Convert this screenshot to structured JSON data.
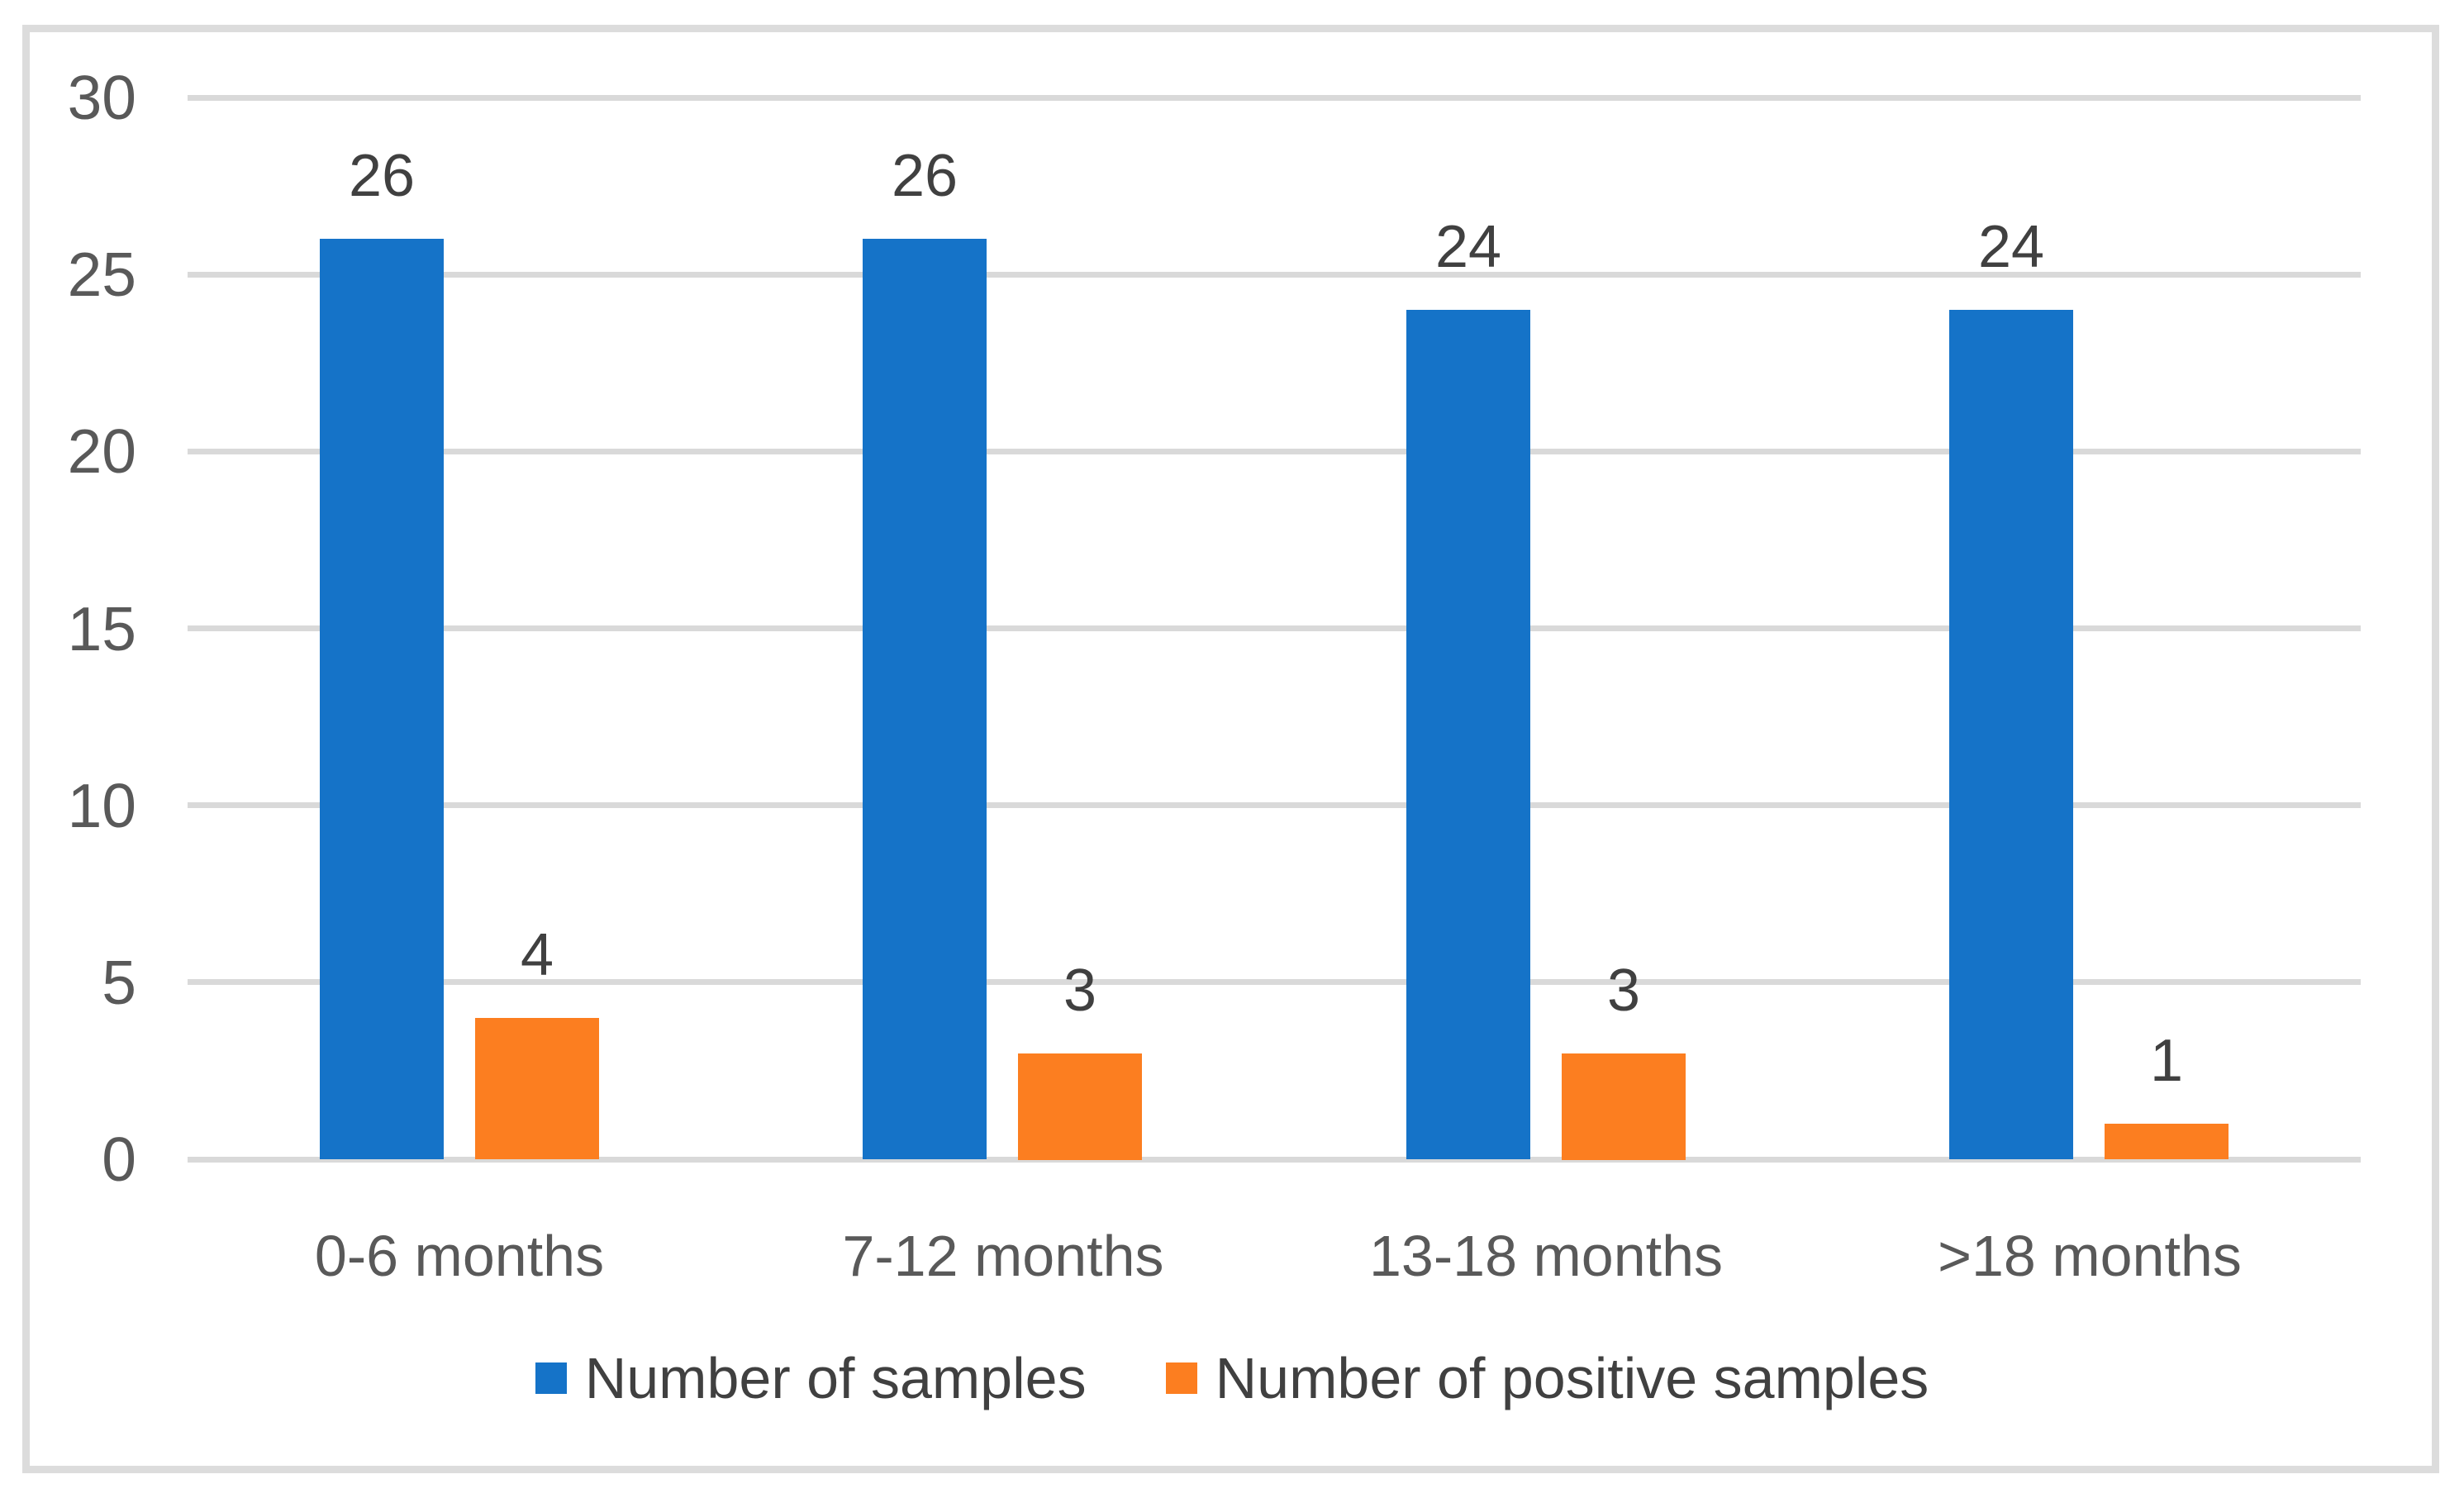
{
  "figure": {
    "background_color": "#ffffff",
    "border_color": "#dcdcdc"
  },
  "chart_data": {
    "type": "bar",
    "title": "",
    "xlabel": "",
    "ylabel": "",
    "categories": [
      "0-6 months",
      "7-12 months",
      "13-18 months",
      ">18 months"
    ],
    "series": [
      {
        "name": "Number of samples",
        "color": "#1573c8",
        "values": [
          26,
          26,
          24,
          24
        ]
      },
      {
        "name": "Number of positive samples",
        "color": "#fc7e20",
        "values": [
          4,
          3,
          3,
          1
        ]
      }
    ],
    "data_labels": {
      "Number of samples": [
        26,
        26,
        24,
        24
      ],
      "Number of positive samples": [
        4,
        3,
        3,
        1
      ]
    },
    "ylim": [
      0,
      30
    ],
    "yticks": [
      0,
      5,
      10,
      15,
      20,
      25,
      30
    ],
    "grid": true,
    "gridline_color": "#d9d9d9",
    "legend_position": "bottom",
    "axis_tick_color": "#595959",
    "value_label_color": "#404040"
  }
}
